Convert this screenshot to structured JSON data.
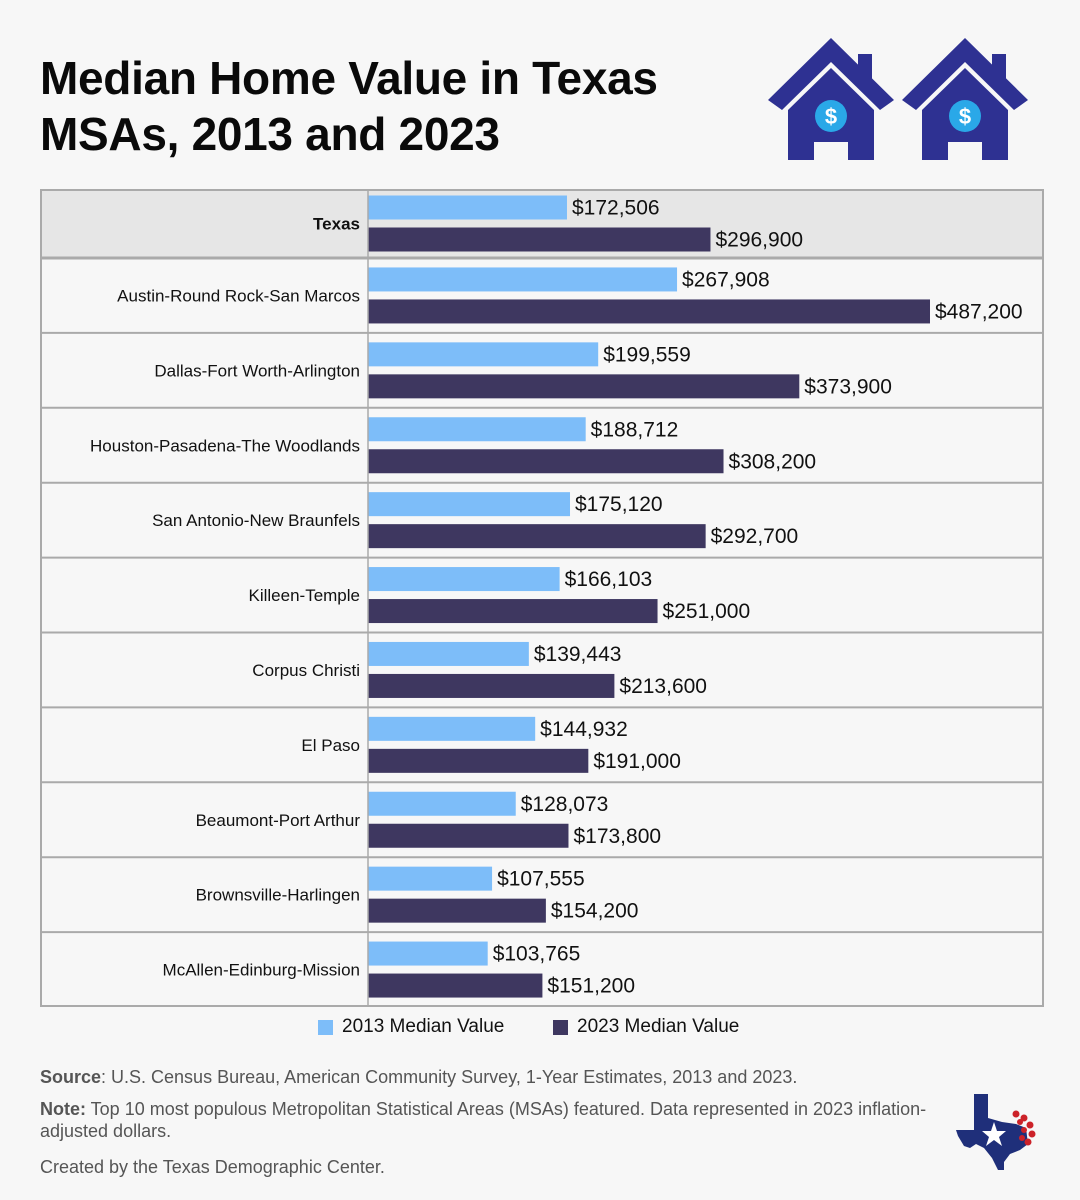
{
  "title": "Median Home Value in Texas MSAs, 2013 and 2023",
  "colors": {
    "series_2013": "#7dbdf9",
    "series_2023": "#3e3760",
    "house": "#2e3192",
    "coin": "#2aa8e8",
    "header_row": "#e6e6e6",
    "grid": "#aaaaaa",
    "logo_blue": "#1f2f7a",
    "logo_red": "#cc2229"
  },
  "icons": [
    "house-dollar-icon",
    "house-dollar-icon"
  ],
  "chart_data": {
    "type": "bar",
    "orientation": "horizontal",
    "categories": [
      "Texas",
      "Austin-Round Rock-San Marcos",
      "Dallas-Fort Worth-Arlington",
      "Houston-Pasadena-The Woodlands",
      "San Antonio-New Braunfels",
      "Killeen-Temple",
      "Corpus Christi",
      "El Paso",
      "Beaumont-Port Arthur",
      "Brownsville-Harlingen",
      "McAllen-Edinburg-Mission"
    ],
    "series": [
      {
        "name": "2013 Median Value",
        "values": [
          172506,
          267908,
          199559,
          188712,
          175120,
          166103,
          139443,
          144932,
          128073,
          107555,
          103765
        ],
        "labels": [
          "$172,506",
          "$267,908",
          "$199,559",
          "$188,712",
          "$175,120",
          "$166,103",
          "$139,443",
          "$144,932",
          "$128,073",
          "$107,555",
          "$103,765"
        ]
      },
      {
        "name": "2023 Median Value",
        "values": [
          296900,
          487200,
          373900,
          308200,
          292700,
          251000,
          213600,
          191000,
          173800,
          154200,
          151200
        ],
        "labels": [
          "$296,900",
          "$487,200",
          "$373,900",
          "$308,200",
          "$292,700",
          "$251,000",
          "$213,600",
          "$191,000",
          "$173,800",
          "$154,200",
          "$151,200"
        ]
      }
    ],
    "xlim": [
      0,
      487200
    ],
    "highlight_category": "Texas"
  },
  "legend": {
    "items": [
      "2013 Median Value",
      "2023 Median Value"
    ]
  },
  "footer": {
    "source_label": "Source",
    "source_text": ": U.S. Census Bureau, American Community Survey, 1-Year Estimates, 2013 and 2023.",
    "note_label": "Note:",
    "note_text": " Top 10 most populous Metropolitan Statistical Areas (MSAs) featured. Data represented in 2023 inflation-adjusted dollars.",
    "credit": "Created by the Texas Demographic Center."
  },
  "logo": "texas-demographic-center-logo"
}
